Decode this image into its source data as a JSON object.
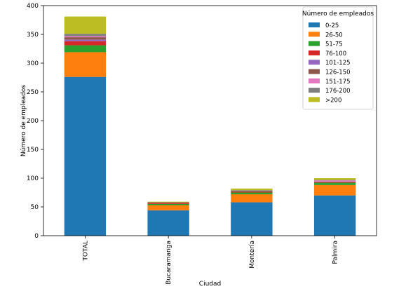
{
  "chart_data": {
    "type": "bar",
    "stacked": true,
    "title": "",
    "xlabel": "Ciudad",
    "ylabel": "Número de empleados",
    "ylim": [
      0,
      400
    ],
    "yticks": [
      0,
      50,
      100,
      150,
      200,
      250,
      300,
      350,
      400
    ],
    "grid": false,
    "legend_position": "top-right",
    "legend_title": "Número de empleados",
    "categories": [
      "TOTAL",
      "Bucaramanga",
      "Montería",
      "Palmira"
    ],
    "series": [
      {
        "name": "0-25",
        "color": "#1f77b4",
        "values": [
          276,
          44,
          58,
          70
        ]
      },
      {
        "name": "26-50",
        "color": "#ff7f0e",
        "values": [
          43,
          9,
          14,
          18
        ]
      },
      {
        "name": "51-75",
        "color": "#2ca02c",
        "values": [
          12,
          2,
          3,
          4
        ]
      },
      {
        "name": "76-100",
        "color": "#d62728",
        "values": [
          7,
          2,
          1,
          1
        ]
      },
      {
        "name": "101-125",
        "color": "#9467bd",
        "values": [
          3,
          0,
          0,
          0
        ]
      },
      {
        "name": "126-150",
        "color": "#8c564b",
        "values": [
          4,
          1,
          2,
          1
        ]
      },
      {
        "name": "151-175",
        "color": "#e377c2",
        "values": [
          2,
          0,
          0,
          2
        ]
      },
      {
        "name": "176-200",
        "color": "#7f7f7f",
        "values": [
          4,
          0,
          1,
          1
        ]
      },
      {
        "name": ">200",
        "color": "#bcbd22",
        "values": [
          30,
          1,
          3,
          3
        ]
      }
    ]
  }
}
